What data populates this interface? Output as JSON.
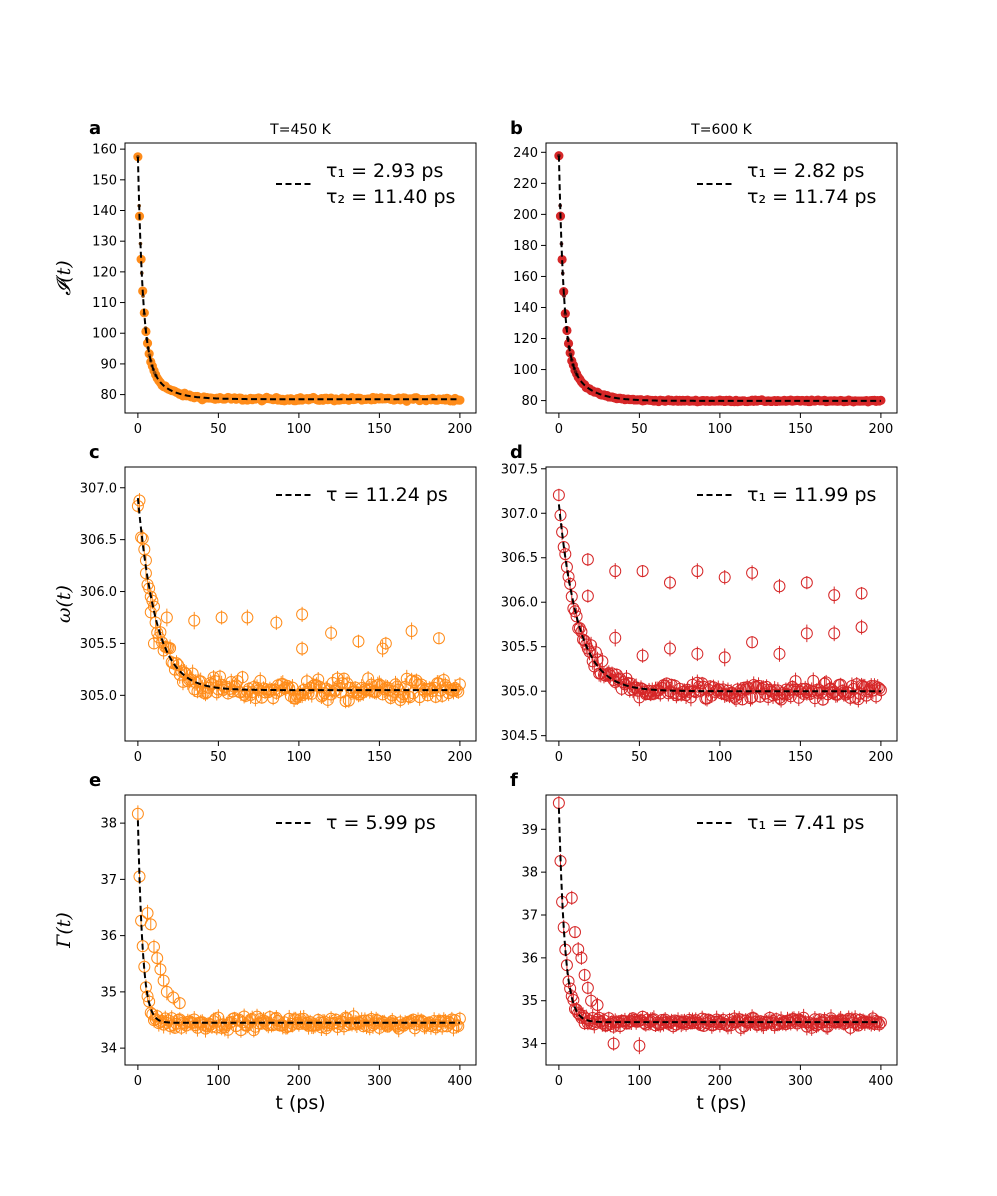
{
  "figure": {
    "column_titles": [
      "T=450 K",
      "T=600 K"
    ]
  },
  "colors": {
    "orange": "#ff8c1a",
    "red": "#d62728",
    "fit": "#000000"
  },
  "chart_data": [
    {
      "id": "a",
      "panel_label": "a",
      "title": "T=450 K",
      "type": "scatter",
      "ylabel": "𝓘(t)",
      "xlabel": "",
      "xlim": [
        -8,
        210
      ],
      "ylim": [
        74,
        162
      ],
      "xticks": [
        0,
        50,
        100,
        150,
        200
      ],
      "yticks": [
        80,
        90,
        100,
        110,
        120,
        130,
        140,
        150,
        160
      ],
      "marker": "filled",
      "color": "orange",
      "fit": {
        "type": "biexp",
        "A1": 62,
        "tau1": 2.93,
        "A2": 17,
        "tau2": 11.4,
        "baseline": 78.5
      },
      "samples": {
        "x_step": 1.0,
        "x_max": 200,
        "noise": 0.5,
        "outliers": []
      },
      "legend": [
        "τ₁ = 2.93 ps",
        "τ₂ = 11.40 ps"
      ]
    },
    {
      "id": "b",
      "panel_label": "b",
      "title": "T=600 K",
      "type": "scatter",
      "ylabel": "",
      "xlabel": "",
      "xlim": [
        -8,
        210
      ],
      "ylim": [
        72,
        246
      ],
      "xticks": [
        0,
        50,
        100,
        150,
        200
      ],
      "yticks": [
        80,
        100,
        120,
        140,
        160,
        180,
        200,
        220,
        240
      ],
      "marker": "filled",
      "color": "red",
      "fit": {
        "type": "biexp",
        "A1": 120,
        "tau1": 2.82,
        "A2": 38,
        "tau2": 11.74,
        "baseline": 79.8
      },
      "samples": {
        "x_step": 1.0,
        "x_max": 200,
        "noise": 0.5,
        "outliers": []
      },
      "legend": [
        "τ₁ = 2.82 ps",
        "τ₂ = 11.74 ps"
      ]
    },
    {
      "id": "c",
      "panel_label": "c",
      "title": "",
      "type": "scatter",
      "ylabel": "ω(t)",
      "xlabel": "",
      "xlim": [
        -8,
        210
      ],
      "ylim": [
        304.56,
        307.2
      ],
      "xticks": [
        0,
        50,
        100,
        150,
        200
      ],
      "yticks": [
        305.0,
        305.5,
        306.0,
        306.5,
        307.0
      ],
      "marker": "open",
      "color": "orange",
      "fit": {
        "type": "exp",
        "A1": 1.85,
        "tau1": 11.24,
        "baseline": 305.05
      },
      "samples": {
        "x_step": 1.0,
        "x_max": 200,
        "noise": 0.1,
        "outliers": [
          [
            5,
            306.3
          ],
          [
            8,
            305.8
          ],
          [
            10,
            305.5
          ],
          [
            18,
            305.75
          ],
          [
            35,
            305.72
          ],
          [
            52,
            305.75
          ],
          [
            68,
            305.75
          ],
          [
            86,
            305.7
          ],
          [
            102,
            305.78
          ],
          [
            102,
            305.45
          ],
          [
            120,
            305.6
          ],
          [
            137,
            305.52
          ],
          [
            152,
            305.45
          ],
          [
            154,
            305.5
          ],
          [
            170,
            305.62
          ],
          [
            187,
            305.55
          ]
        ]
      },
      "legend": [
        "τ = 11.24 ps"
      ]
    },
    {
      "id": "d",
      "panel_label": "d",
      "title": "",
      "type": "scatter",
      "ylabel": "",
      "xlabel": "",
      "xlim": [
        -8,
        210
      ],
      "ylim": [
        304.44,
        307.52
      ],
      "xticks": [
        0,
        50,
        100,
        150,
        200
      ],
      "yticks": [
        304.5,
        305.0,
        305.5,
        306.0,
        306.5,
        307.0,
        307.5
      ],
      "marker": "open",
      "color": "red",
      "fit": {
        "type": "exp",
        "A1": 2.1,
        "tau1": 11.99,
        "baseline": 305.0
      },
      "samples": {
        "x_step": 1.0,
        "x_max": 200,
        "noise": 0.1,
        "outliers": [
          [
            18,
            306.48
          ],
          [
            35,
            306.35
          ],
          [
            52,
            306.35
          ],
          [
            69,
            306.22
          ],
          [
            86,
            306.35
          ],
          [
            103,
            306.28
          ],
          [
            120,
            306.33
          ],
          [
            137,
            306.18
          ],
          [
            154,
            306.22
          ],
          [
            171,
            306.08
          ],
          [
            188,
            306.1
          ],
          [
            35,
            305.6
          ],
          [
            52,
            305.4
          ],
          [
            69,
            305.48
          ],
          [
            86,
            305.42
          ],
          [
            103,
            305.38
          ],
          [
            120,
            305.55
          ],
          [
            137,
            305.42
          ],
          [
            154,
            305.65
          ],
          [
            171,
            305.65
          ],
          [
            188,
            305.72
          ],
          [
            18,
            306.07
          ]
        ]
      },
      "legend": [
        "τ₁ = 11.99 ps"
      ]
    },
    {
      "id": "e",
      "panel_label": "e",
      "title": "",
      "type": "scatter",
      "ylabel": "Γ(t)",
      "xlabel": "t (ps)",
      "xlim": [
        -16,
        420
      ],
      "ylim": [
        33.7,
        38.5
      ],
      "xticks": [
        0,
        100,
        200,
        300,
        400
      ],
      "yticks": [
        34,
        35,
        36,
        37,
        38
      ],
      "marker": "open",
      "color": "orange",
      "fit": {
        "type": "exp",
        "A1": 3.6,
        "tau1": 5.99,
        "baseline": 34.45
      },
      "samples": {
        "x_step": 2.0,
        "x_max": 400,
        "noise": 0.1,
        "outliers": [
          [
            12,
            36.4
          ],
          [
            16,
            36.2
          ],
          [
            20,
            35.8
          ],
          [
            24,
            35.6
          ],
          [
            28,
            35.4
          ],
          [
            32,
            35.2
          ],
          [
            36,
            35.0
          ],
          [
            44,
            34.9
          ],
          [
            52,
            34.8
          ]
        ]
      },
      "legend": [
        "τ = 5.99 ps"
      ]
    },
    {
      "id": "f",
      "panel_label": "f",
      "title": "",
      "type": "scatter",
      "ylabel": "",
      "xlabel": "t (ps)",
      "xlim": [
        -16,
        420
      ],
      "ylim": [
        33.5,
        39.8
      ],
      "xticks": [
        0,
        100,
        200,
        300,
        400
      ],
      "yticks": [
        34,
        35,
        36,
        37,
        38,
        39
      ],
      "marker": "open",
      "color": "red",
      "fit": {
        "type": "exp",
        "A1": 5.0,
        "tau1": 7.41,
        "baseline": 34.5
      },
      "samples": {
        "x_step": 2.0,
        "x_max": 400,
        "noise": 0.1,
        "outliers": [
          [
            16,
            37.4
          ],
          [
            20,
            36.6
          ],
          [
            24,
            36.2
          ],
          [
            28,
            36.0
          ],
          [
            32,
            35.6
          ],
          [
            36,
            35.3
          ],
          [
            40,
            35.0
          ],
          [
            48,
            34.9
          ],
          [
            68,
            34.0
          ],
          [
            100,
            33.95
          ]
        ]
      },
      "legend": [
        "τ₁ = 7.41 ps"
      ]
    }
  ]
}
